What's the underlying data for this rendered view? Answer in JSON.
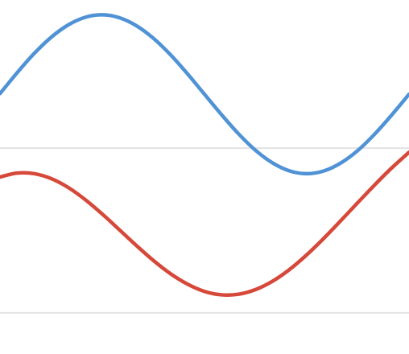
{
  "chart_data": {
    "type": "line",
    "title": "",
    "xlabel": "",
    "ylabel": "",
    "xlim": [
      0,
      360
    ],
    "ylim": [
      -1.5,
      2.8
    ],
    "grid": {
      "horizontal": true,
      "vertical": false,
      "y_values": [
        -1,
        1
      ]
    },
    "legend": "none",
    "series": [
      {
        "color": "#4f92d6",
        "x": [
          0,
          15,
          30,
          45,
          60,
          75,
          90,
          105,
          120,
          135,
          150,
          165,
          180,
          195,
          210,
          225,
          240,
          255,
          270,
          285,
          300,
          315,
          330,
          345,
          360
        ],
        "y": [
          1.663,
          1.915,
          2.149,
          2.347,
          2.497,
          2.59,
          2.62,
          2.585,
          2.488,
          2.335,
          2.136,
          1.904,
          1.655,
          1.407,
          1.174,
          0.973,
          0.82,
          0.723,
          0.69,
          0.723,
          0.82,
          0.973,
          1.174,
          1.407,
          1.655
        ]
      },
      {
        "color": "#d6483a",
        "x": [
          0,
          15,
          30,
          45,
          60,
          75,
          90,
          105,
          120,
          135,
          150,
          165,
          180,
          195,
          210,
          225,
          240,
          255,
          270,
          285,
          300,
          315,
          330,
          345,
          360
        ],
        "y": [
          0.65,
          0.698,
          0.691,
          0.631,
          0.523,
          0.375,
          0.2,
          0.01,
          -0.182,
          -0.364,
          -0.524,
          -0.651,
          -0.74,
          -0.781,
          -0.774,
          -0.717,
          -0.615,
          -0.472,
          -0.295,
          -0.095,
          0.12,
          0.34,
          0.557,
          0.763,
          0.95
        ]
      }
    ]
  }
}
